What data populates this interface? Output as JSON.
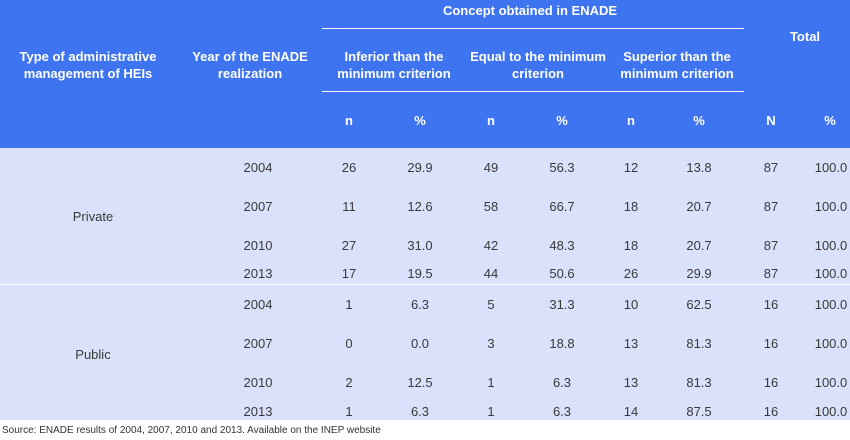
{
  "header": {
    "concept_group": "Concept obtained in ENADE",
    "col_type": "Type of administrative management of HEIs",
    "col_year": "Year of the ENADE realization",
    "col_inferior": "Inferior than the minimum criterion",
    "col_equal": "Equal to the minimum criterion",
    "col_superior": "Superior than the minimum criterion",
    "col_total": "Total",
    "sub": [
      "n",
      "%",
      "n",
      "%",
      "n",
      "%",
      "N",
      "%"
    ]
  },
  "groups": [
    {
      "label": "Private",
      "rows": [
        {
          "year": "2004",
          "inf_n": "26",
          "inf_p": "29.9",
          "eq_n": "49",
          "eq_p": "56.3",
          "sup_n": "12",
          "sup_p": "13.8",
          "tot_n": "87",
          "tot_p": "100.0"
        },
        {
          "year": "2007",
          "inf_n": "11",
          "inf_p": "12.6",
          "eq_n": "58",
          "eq_p": "66.7",
          "sup_n": "18",
          "sup_p": "20.7",
          "tot_n": "87",
          "tot_p": "100.0"
        },
        {
          "year": "2010",
          "inf_n": "27",
          "inf_p": "31.0",
          "eq_n": "42",
          "eq_p": "48.3",
          "sup_n": "18",
          "sup_p": "20.7",
          "tot_n": "87",
          "tot_p": "100.0"
        },
        {
          "year": "2013",
          "inf_n": "17",
          "inf_p": "19.5",
          "eq_n": "44",
          "eq_p": "50.6",
          "sup_n": "26",
          "sup_p": "29.9",
          "tot_n": "87",
          "tot_p": "100.0"
        }
      ]
    },
    {
      "label": "Public",
      "rows": [
        {
          "year": "2004",
          "inf_n": "1",
          "inf_p": "6.3",
          "eq_n": "5",
          "eq_p": "31.3",
          "sup_n": "10",
          "sup_p": "62.5",
          "tot_n": "16",
          "tot_p": "100.0"
        },
        {
          "year": "2007",
          "inf_n": "0",
          "inf_p": "0.0",
          "eq_n": "3",
          "eq_p": "18.8",
          "sup_n": "13",
          "sup_p": "81.3",
          "tot_n": "16",
          "tot_p": "100.0"
        },
        {
          "year": "2010",
          "inf_n": "2",
          "inf_p": "12.5",
          "eq_n": "1",
          "eq_p": "6.3",
          "sup_n": "13",
          "sup_p": "81.3",
          "tot_n": "16",
          "tot_p": "100.0"
        },
        {
          "year": "2013",
          "inf_n": "1",
          "inf_p": "6.3",
          "eq_n": "1",
          "eq_p": "6.3",
          "sup_n": "14",
          "sup_p": "87.5",
          "tot_n": "16",
          "tot_p": "100.0"
        }
      ]
    }
  ],
  "source": "Source: ENADE results of 2004, 2007, 2010 and 2013. Available on the INEP website",
  "colors": {
    "header_bg": "#3e74f0",
    "body_bg": "#d9e1fb",
    "text": "#3a3a3a"
  }
}
